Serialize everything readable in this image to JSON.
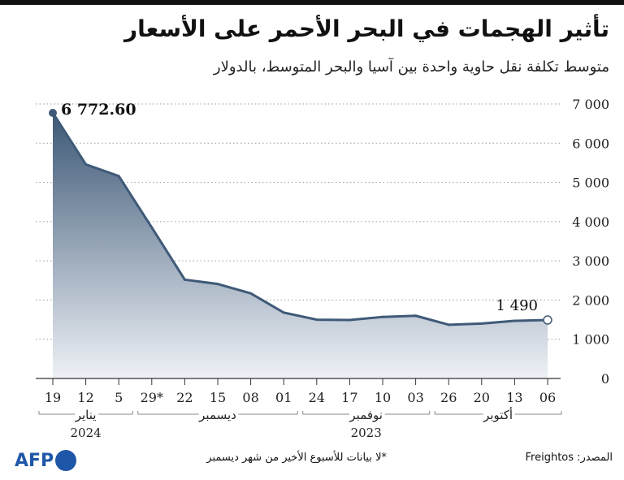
{
  "header": {
    "title": "تأثير الهجمات في البحر الأحمر على الأسعار",
    "subtitle": "متوسط تكلفة نقل حاوية واحدة بين آسيا والبحر المتوسط، بالدولار"
  },
  "footer": {
    "source": "المصدر: Freightos",
    "note": "*لا بيانات للأسبوع الأخير من شهر ديسمبر",
    "logo_text": "AFP"
  },
  "colors": {
    "line": "#3f5a78",
    "fill_top": "#3d5876",
    "fill_bottom": "#eef1f6",
    "grid": "#9a9a9a",
    "axis": "#333333"
  },
  "chart_data": {
    "type": "area",
    "x_direction": "right-to-left",
    "x_labels": [
      "06",
      "13",
      "20",
      "26",
      "03",
      "10",
      "17",
      "24",
      "01",
      "08",
      "15",
      "22",
      "29*",
      "5",
      "12",
      "19"
    ],
    "values": [
      1490,
      1470,
      1400,
      1370,
      1600,
      1570,
      1490,
      1500,
      1680,
      2170,
      2410,
      2520,
      3850,
      5160,
      5460,
      6772.6
    ],
    "y_ticks": [
      "0",
      "1 000",
      "2 000",
      "3 000",
      "4 000",
      "5 000",
      "6 000",
      "7 000"
    ],
    "ylim": [
      0,
      7000
    ],
    "grid": true,
    "annotations": {
      "start_value": "1 490",
      "peak_value": "6 772.60"
    },
    "month_groups": [
      {
        "month": "أكتوبر",
        "year": "",
        "from": 0,
        "to": 3
      },
      {
        "month": "نوفمبر",
        "year": "2023",
        "from": 4,
        "to": 7
      },
      {
        "month": "ديسمبر",
        "year": "",
        "from": 8,
        "to": 12
      },
      {
        "month": "يناير",
        "year": "2024",
        "from": 13,
        "to": 15
      }
    ]
  }
}
